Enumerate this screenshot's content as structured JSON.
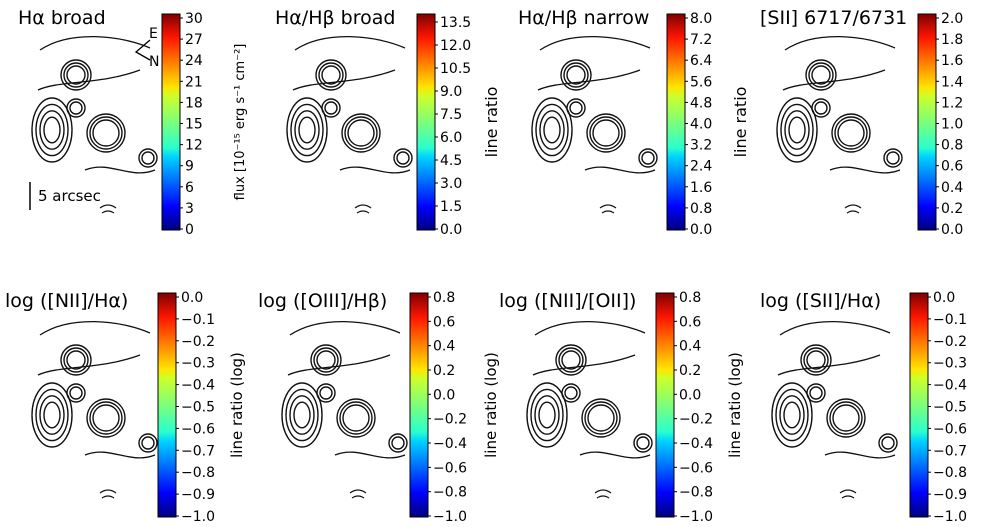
{
  "chart_data": [
    {
      "type": "heatmap",
      "title": "Hα broad",
      "colorbar_label": "flux [10⁻¹⁵ erg s⁻¹ cm⁻²]",
      "colorbar_ticks": [
        "30",
        "27",
        "24",
        "21",
        "18",
        "15",
        "12",
        "9",
        "6",
        "3",
        "0"
      ],
      "vmin": 0,
      "vmax": 30,
      "colormap": "jet",
      "annotations": {
        "compass_east": "E",
        "compass_north": "N",
        "scale_bar": "5 arcsec"
      }
    },
    {
      "type": "heatmap",
      "title": "Hα/Hβ broad",
      "colorbar_label": "line ratio",
      "colorbar_ticks": [
        "13.5",
        "12.0",
        "10.5",
        "9.0",
        "7.5",
        "6.0",
        "4.5",
        "3.0",
        "1.5",
        "0.0"
      ],
      "vmin": 0,
      "vmax": 13.5,
      "colormap": "jet"
    },
    {
      "type": "heatmap",
      "title": "Hα/Hβ narrow",
      "colorbar_label": "line ratio",
      "colorbar_ticks": [
        "8.0",
        "7.2",
        "6.4",
        "5.6",
        "4.8",
        "4.0",
        "3.2",
        "2.4",
        "1.6",
        "0.8",
        "0.0"
      ],
      "vmin": 0,
      "vmax": 8,
      "colormap": "jet"
    },
    {
      "type": "heatmap",
      "title": "[SII] 6717/6731",
      "colorbar_label": "line ratio",
      "colorbar_ticks": [
        "2.0",
        "1.8",
        "1.6",
        "1.4",
        "1.2",
        "1.0",
        "0.8",
        "0.6",
        "0.4",
        "0.2",
        "0.0"
      ],
      "vmin": 0,
      "vmax": 2,
      "colormap": "jet"
    },
    {
      "type": "heatmap",
      "title": "log ([NII]/Hα)",
      "colorbar_label": "line ratio (log)",
      "colorbar_ticks": [
        "0.0",
        "−0.1",
        "−0.2",
        "−0.3",
        "−0.4",
        "−0.5",
        "−0.6",
        "−0.7",
        "−0.8",
        "−0.9",
        "−1.0"
      ],
      "vmin": -1,
      "vmax": 0,
      "colormap": "jet"
    },
    {
      "type": "heatmap",
      "title": "log ([OIII]/Hβ)",
      "colorbar_label": "line ratio (log)",
      "colorbar_ticks": [
        "0.8",
        "0.6",
        "0.4",
        "0.2",
        "0.0",
        "−0.2",
        "−0.4",
        "−0.6",
        "−0.8",
        "−1.0"
      ],
      "vmin": -1,
      "vmax": 0.8,
      "colormap": "jet"
    },
    {
      "type": "heatmap",
      "title": "log ([NII]/[OII])",
      "colorbar_label": "line ratio (log)",
      "colorbar_ticks": [
        "0.8",
        "0.6",
        "0.4",
        "0.2",
        "0.0",
        "−0.2",
        "−0.4",
        "−0.6",
        "−0.8",
        "−1.0"
      ],
      "vmin": -1,
      "vmax": 0.8,
      "colormap": "jet"
    },
    {
      "type": "heatmap",
      "title": "log ([SII]/Hα)",
      "colorbar_label": "line ratio (log)",
      "colorbar_ticks": [
        "0.0",
        "−0.1",
        "−0.2",
        "−0.3",
        "−0.4",
        "−0.5",
        "−0.6",
        "−0.7",
        "−0.8",
        "−0.9",
        "−1.0"
      ],
      "vmin": -1,
      "vmax": 0,
      "colormap": "jet"
    }
  ]
}
